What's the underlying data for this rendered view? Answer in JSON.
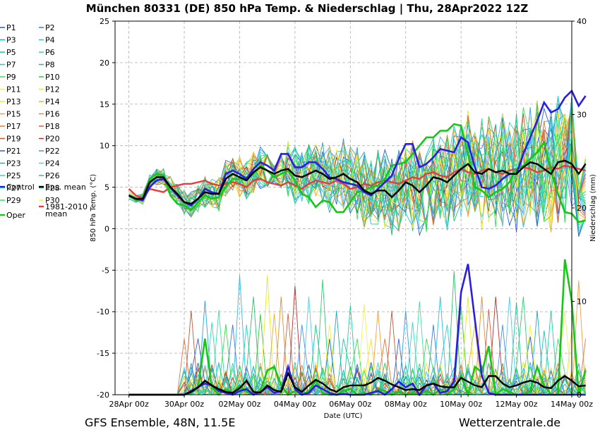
{
  "chart_data": {
    "type": "line",
    "title": "München 80331 (DE)  850 hPa Temp. & Niederschlag | Thu, 28Apr2022 12Z",
    "xlabel": "Date (UTC)",
    "ylabel": "850 hPa Temp. (°C)",
    "y2label": "Niederschlag (mm)",
    "ylim": [
      -20,
      25
    ],
    "y2lim": [
      0,
      40
    ],
    "xlim": [
      -0.5,
      16.0
    ],
    "x_tick_values": [
      0,
      2,
      4,
      6,
      8,
      10,
      12,
      14,
      16
    ],
    "x_tick_labels": [
      "28Apr 00z",
      "30Apr 00z",
      "02May 00z",
      "04May 00z",
      "06May 00z",
      "08May 00z",
      "10May 00z",
      "12May 00z",
      "14May 00z"
    ],
    "y_ticks": [
      -20,
      -15,
      -10,
      -5,
      0,
      5,
      10,
      15,
      20,
      25
    ],
    "y2_ticks": [
      0,
      10,
      20,
      30,
      40
    ],
    "y_tick_labels": [
      "-20",
      "-15",
      "-10",
      "-5",
      "0",
      "5",
      "10",
      "15",
      "20",
      "25"
    ],
    "y2_tick_labels": [
      "0",
      "10",
      "20",
      "30",
      "40"
    ],
    "grid": true,
    "legend_position": "left",
    "x_step_days": 0.25,
    "ensemble": {
      "members": [
        "P1",
        "P2",
        "P3",
        "P4",
        "P5",
        "P6",
        "P7",
        "P8",
        "P9",
        "P10",
        "P11",
        "P12",
        "P13",
        "P14",
        "P15",
        "P16",
        "P17",
        "P18",
        "P19",
        "P20",
        "P21",
        "P22",
        "P23",
        "P24",
        "P25",
        "P26",
        "P27",
        "P28",
        "P29",
        "P30"
      ],
      "colors": [
        "#1f5fd6",
        "#3a7be0",
        "#21a6c8",
        "#35b8e0",
        "#17c6b0",
        "#2ad4c8",
        "#19d39a",
        "#2bbf70",
        "#39e05a",
        "#2ec93a",
        "#f0f060",
        "#e8e82a",
        "#f5e04a",
        "#e8b030",
        "#f0a040",
        "#d8903a",
        "#e07840",
        "#d86040",
        "#c05838",
        "#b83030",
        "#3060d0",
        "#4a90e8",
        "#2aa0e0",
        "#55c8f0",
        "#30d8c0",
        "#22c090",
        "#3ce0a0",
        "#28d070",
        "#36e048",
        "#f4f430"
      ]
    },
    "series": [
      {
        "name": "Control",
        "color": "#2a1ee0",
        "temp": [
          4.0,
          3.6,
          3.4,
          5.0,
          5.8,
          6.0,
          5.0,
          4.0,
          3.2,
          2.8,
          3.6,
          4.8,
          4.4,
          4.2,
          6.6,
          7.0,
          6.6,
          6.0,
          7.2,
          8.0,
          7.6,
          7.0,
          9.0,
          9.0,
          7.4,
          7.4,
          8.0,
          8.0,
          7.2,
          6.2,
          6.0,
          5.6,
          5.4,
          5.2,
          4.4,
          4.0,
          4.8,
          5.6,
          6.4,
          8.4,
          10.2,
          10.2,
          7.4,
          7.8,
          8.6,
          9.6,
          9.4,
          9.2,
          11.0,
          10.4,
          7.4,
          5.0,
          4.8,
          5.2,
          6.0,
          6.6,
          6.6,
          9.0,
          11.0,
          13.0,
          15.2,
          14.0,
          14.4,
          15.8,
          16.6,
          14.8,
          16.0
        ],
        "precip": [
          0,
          0,
          0,
          0,
          0,
          0,
          0,
          0,
          0,
          0.4,
          0.8,
          1.2,
          1.0,
          0.4,
          0.2,
          0,
          0.4,
          0.6,
          0,
          0.3,
          0.8,
          0.2,
          0.4,
          3.0,
          0.6,
          0,
          0.2,
          1.0,
          0.6,
          0.2,
          0,
          0.1,
          0,
          0,
          0,
          0.2,
          0.4,
          0,
          0.6,
          1.4,
          0.8,
          1.2,
          0,
          1.0,
          1.2,
          0.2,
          0.4,
          1.4,
          11.0,
          14.0,
          8.0,
          2.0,
          0.2,
          0,
          0,
          0,
          0,
          0,
          0,
          0,
          0,
          0,
          0,
          0,
          0,
          0,
          0
        ]
      },
      {
        "name": "Ens. mean",
        "color": "#000000",
        "temp": [
          4.0,
          3.6,
          3.6,
          5.6,
          6.2,
          6.2,
          5.0,
          4.2,
          3.2,
          3.0,
          3.6,
          4.4,
          4.2,
          4.2,
          6.0,
          6.6,
          6.2,
          5.8,
          6.8,
          7.4,
          7.0,
          6.6,
          7.0,
          7.2,
          6.4,
          6.2,
          6.6,
          7.0,
          6.6,
          6.0,
          6.2,
          6.6,
          6.0,
          5.6,
          4.6,
          4.2,
          4.6,
          4.6,
          3.8,
          4.6,
          5.6,
          5.2,
          4.4,
          5.2,
          6.2,
          6.0,
          5.6,
          6.4,
          7.2,
          7.8,
          6.8,
          6.6,
          7.2,
          6.8,
          7.0,
          6.6,
          6.6,
          7.4,
          8.0,
          7.8,
          7.2,
          6.6,
          8.0,
          8.2,
          7.8,
          6.6,
          7.8
        ],
        "precip": [
          0,
          0,
          0,
          0,
          0,
          0,
          0,
          0,
          0,
          0.3,
          0.8,
          1.5,
          1.0,
          0.6,
          0.3,
          0.2,
          0.7,
          1.5,
          0.3,
          0.2,
          1.0,
          0.5,
          0.3,
          2.3,
          0.8,
          0.3,
          1.0,
          1.6,
          1.2,
          0.6,
          0.3,
          0.8,
          1.0,
          1.0,
          1.0,
          1.3,
          1.8,
          1.5,
          1.1,
          0.8,
          0.5,
          0.6,
          0.5,
          1.0,
          1.2,
          0.9,
          0.8,
          0.8,
          1.8,
          1.4,
          1.0,
          0.8,
          2.0,
          2.0,
          1.2,
          0.8,
          1.0,
          1.3,
          1.5,
          1.3,
          0.8,
          0.7,
          1.5,
          2.0,
          1.5,
          0.9,
          1.0
        ]
      },
      {
        "name": "Oper",
        "color": "#14c814",
        "temp": [
          4.0,
          3.4,
          3.6,
          6.0,
          6.6,
          6.4,
          4.0,
          3.0,
          2.8,
          2.2,
          3.2,
          4.0,
          3.6,
          3.8,
          5.0,
          6.0,
          6.0,
          6.2,
          6.6,
          7.6,
          7.0,
          6.2,
          6.6,
          7.0,
          5.8,
          4.2,
          3.8,
          2.6,
          3.4,
          3.2,
          2.0,
          2.0,
          3.2,
          4.4,
          4.6,
          5.0,
          5.2,
          6.0,
          7.6,
          7.8,
          8.0,
          9.0,
          10.0,
          11.0,
          11.0,
          11.8,
          11.8,
          12.6,
          12.4,
          9.0,
          5.0,
          4.6,
          3.8,
          4.4,
          4.8,
          5.6,
          7.2,
          7.6,
          8.4,
          9.2,
          10.4,
          7.0,
          4.2,
          2.0,
          1.8,
          0.8,
          1.0
        ],
        "precip": [
          0,
          0,
          0,
          0,
          0,
          0,
          0,
          0,
          0,
          0.2,
          0.8,
          6.0,
          0.8,
          0,
          0.6,
          0.2,
          1.0,
          0.3,
          0,
          0.4,
          2.6,
          3.0,
          1.0,
          0,
          0.4,
          0,
          0.4,
          1.5,
          0.2,
          0,
          0,
          0.4,
          0.6,
          0,
          0.2,
          0,
          0.6,
          0.4,
          0,
          0.3,
          0,
          0.2,
          0,
          0.4,
          0,
          0.6,
          0,
          0.6,
          2.0,
          0,
          3.0,
          2.4,
          5.2,
          0,
          0.6,
          0.3,
          0,
          0,
          0.4,
          3.0,
          1.0,
          0,
          0,
          14.5,
          10.0,
          0,
          2.6
        ]
      },
      {
        "name": "1981-2010 mean",
        "color": "#e83c3c",
        "temp": [
          4.8,
          4.0,
          3.6,
          4.8,
          4.6,
          4.4,
          5.0,
          5.2,
          5.4,
          5.4,
          5.6,
          5.8,
          5.4,
          5.2,
          5.4,
          5.6,
          5.4,
          5.0,
          5.8,
          6.0,
          5.6,
          5.4,
          5.2,
          5.6,
          5.2,
          4.8,
          5.4,
          5.8,
          5.6,
          5.4,
          5.8,
          5.4,
          4.8,
          5.0,
          5.4,
          5.2,
          5.6,
          5.8,
          5.6,
          5.4,
          5.8,
          6.2,
          6.0,
          6.6,
          6.8,
          6.4,
          6.2,
          6.8,
          7.2,
          6.8,
          6.6,
          7.0,
          7.2,
          6.8,
          6.6,
          7.0,
          7.2,
          7.4,
          7.2,
          6.8,
          7.0,
          7.4,
          7.2,
          7.6,
          7.4,
          7.2,
          7.0
        ],
        "precip": []
      }
    ]
  },
  "legend": {
    "members": [
      "P1",
      "P2",
      "P3",
      "P4",
      "P5",
      "P6",
      "P7",
      "P8",
      "P9",
      "P10",
      "P11",
      "P12",
      "P13",
      "P14",
      "P15",
      "P16",
      "P17",
      "P18",
      "P19",
      "P20",
      "P21",
      "P22",
      "P23",
      "P24",
      "P25",
      "P26",
      "P27",
      "P28",
      "P29",
      "P30"
    ],
    "control": "Control",
    "ens_mean": "Ens. mean",
    "oper": "Oper",
    "climate_line1": "1981-2010",
    "climate_line2": "mean"
  },
  "footer": {
    "left": "GFS Ensemble, 48N, 11.5E",
    "right": "Wetterzentrale.de"
  }
}
